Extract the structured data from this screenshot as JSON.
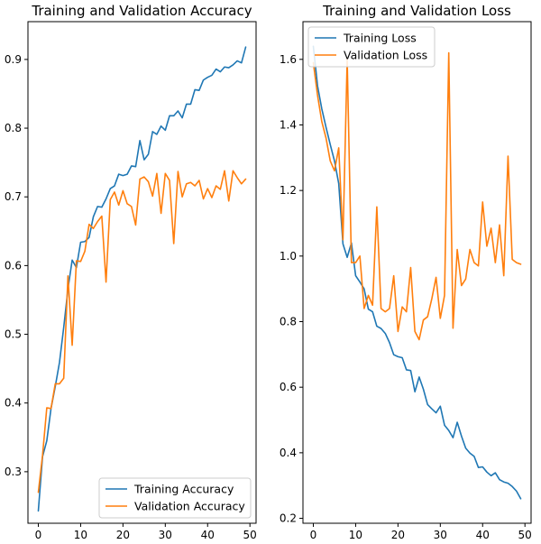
{
  "chart_data": [
    {
      "type": "line",
      "title": "Training and Validation Accuracy",
      "xlabel": "",
      "ylabel": "",
      "xlim": [
        -2.45,
        51.45
      ],
      "ylim": [
        0.225,
        0.955
      ],
      "xticks": [
        0,
        10,
        20,
        30,
        40,
        50
      ],
      "yticks": [
        0.3,
        0.4,
        0.5,
        0.6,
        0.7,
        0.8,
        0.9
      ],
      "ytick_labels": [
        "0.3",
        "0.4",
        "0.5",
        "0.6",
        "0.7",
        "0.8",
        "0.9"
      ],
      "grid": false,
      "legend_position": "lower right",
      "x": [
        0,
        1,
        2,
        3,
        4,
        5,
        6,
        7,
        8,
        9,
        10,
        11,
        12,
        13,
        14,
        15,
        16,
        17,
        18,
        19,
        20,
        21,
        22,
        23,
        24,
        25,
        26,
        27,
        28,
        29,
        30,
        31,
        32,
        33,
        34,
        35,
        36,
        37,
        38,
        39,
        40,
        41,
        42,
        43,
        44,
        45,
        46,
        47,
        48,
        49
      ],
      "series": [
        {
          "name": "Training Accuracy",
          "color": "#1f77b4",
          "values": [
            0.243,
            0.322,
            0.345,
            0.392,
            0.424,
            0.459,
            0.51,
            0.566,
            0.608,
            0.597,
            0.634,
            0.635,
            0.641,
            0.671,
            0.686,
            0.685,
            0.697,
            0.712,
            0.716,
            0.733,
            0.731,
            0.733,
            0.745,
            0.744,
            0.782,
            0.754,
            0.762,
            0.795,
            0.791,
            0.803,
            0.797,
            0.818,
            0.818,
            0.825,
            0.815,
            0.835,
            0.835,
            0.856,
            0.855,
            0.87,
            0.874,
            0.877,
            0.886,
            0.882,
            0.889,
            0.888,
            0.892,
            0.898,
            0.895,
            0.918
          ]
        },
        {
          "name": "Validation Accuracy",
          "color": "#ff7f0e",
          "values": [
            0.27,
            0.324,
            0.393,
            0.392,
            0.428,
            0.428,
            0.436,
            0.585,
            0.484,
            0.607,
            0.606,
            0.621,
            0.66,
            0.654,
            0.664,
            0.672,
            0.576,
            0.696,
            0.707,
            0.688,
            0.709,
            0.69,
            0.686,
            0.659,
            0.726,
            0.729,
            0.722,
            0.701,
            0.734,
            0.676,
            0.734,
            0.724,
            0.632,
            0.737,
            0.7,
            0.719,
            0.721,
            0.716,
            0.724,
            0.697,
            0.712,
            0.699,
            0.716,
            0.711,
            0.738,
            0.694,
            0.738,
            0.728,
            0.719,
            0.726
          ]
        }
      ]
    },
    {
      "type": "line",
      "title": "Training and Validation Loss",
      "xlabel": "",
      "ylabel": "",
      "xlim": [
        -2.45,
        51.45
      ],
      "ylim": [
        0.185,
        1.715
      ],
      "xticks": [
        0,
        10,
        20,
        30,
        40,
        50
      ],
      "yticks": [
        0.2,
        0.4,
        0.6,
        0.8,
        1.0,
        1.2,
        1.4,
        1.6
      ],
      "ytick_labels": [
        "0.2",
        "0.4",
        "0.6",
        "0.8",
        "1.0",
        "1.2",
        "1.4",
        "1.6"
      ],
      "grid": false,
      "legend_position": "upper left",
      "x": [
        0,
        1,
        2,
        3,
        4,
        5,
        6,
        7,
        8,
        9,
        10,
        11,
        12,
        13,
        14,
        15,
        16,
        17,
        18,
        19,
        20,
        21,
        22,
        23,
        24,
        25,
        26,
        27,
        28,
        29,
        30,
        31,
        32,
        33,
        34,
        35,
        36,
        37,
        38,
        39,
        40,
        41,
        42,
        43,
        44,
        45,
        46,
        47,
        48,
        49
      ],
      "series": [
        {
          "name": "Training Loss",
          "color": "#1f77b4",
          "values": [
            1.64,
            1.519,
            1.449,
            1.393,
            1.34,
            1.29,
            1.221,
            1.037,
            0.996,
            1.04,
            0.94,
            0.921,
            0.9,
            0.838,
            0.83,
            0.786,
            0.779,
            0.764,
            0.736,
            0.699,
            0.693,
            0.69,
            0.653,
            0.651,
            0.586,
            0.631,
            0.594,
            0.547,
            0.534,
            0.522,
            0.542,
            0.484,
            0.468,
            0.446,
            0.493,
            0.451,
            0.414,
            0.399,
            0.389,
            0.355,
            0.357,
            0.341,
            0.33,
            0.339,
            0.318,
            0.311,
            0.307,
            0.297,
            0.283,
            0.26
          ]
        },
        {
          "name": "Validation Loss",
          "color": "#ff7f0e",
          "values": [
            1.59,
            1.49,
            1.41,
            1.36,
            1.29,
            1.26,
            1.33,
            1.05,
            1.6,
            0.98,
            0.98,
            1.0,
            0.84,
            0.88,
            0.85,
            1.15,
            0.84,
            0.83,
            0.84,
            0.94,
            0.77,
            0.845,
            0.83,
            0.965,
            0.77,
            0.745,
            0.805,
            0.815,
            0.87,
            0.935,
            0.81,
            0.88,
            1.62,
            0.78,
            1.02,
            0.91,
            0.93,
            1.02,
            0.98,
            0.97,
            1.165,
            1.03,
            1.085,
            0.98,
            1.095,
            0.94,
            1.305,
            0.99,
            0.98,
            0.975
          ]
        }
      ]
    }
  ]
}
